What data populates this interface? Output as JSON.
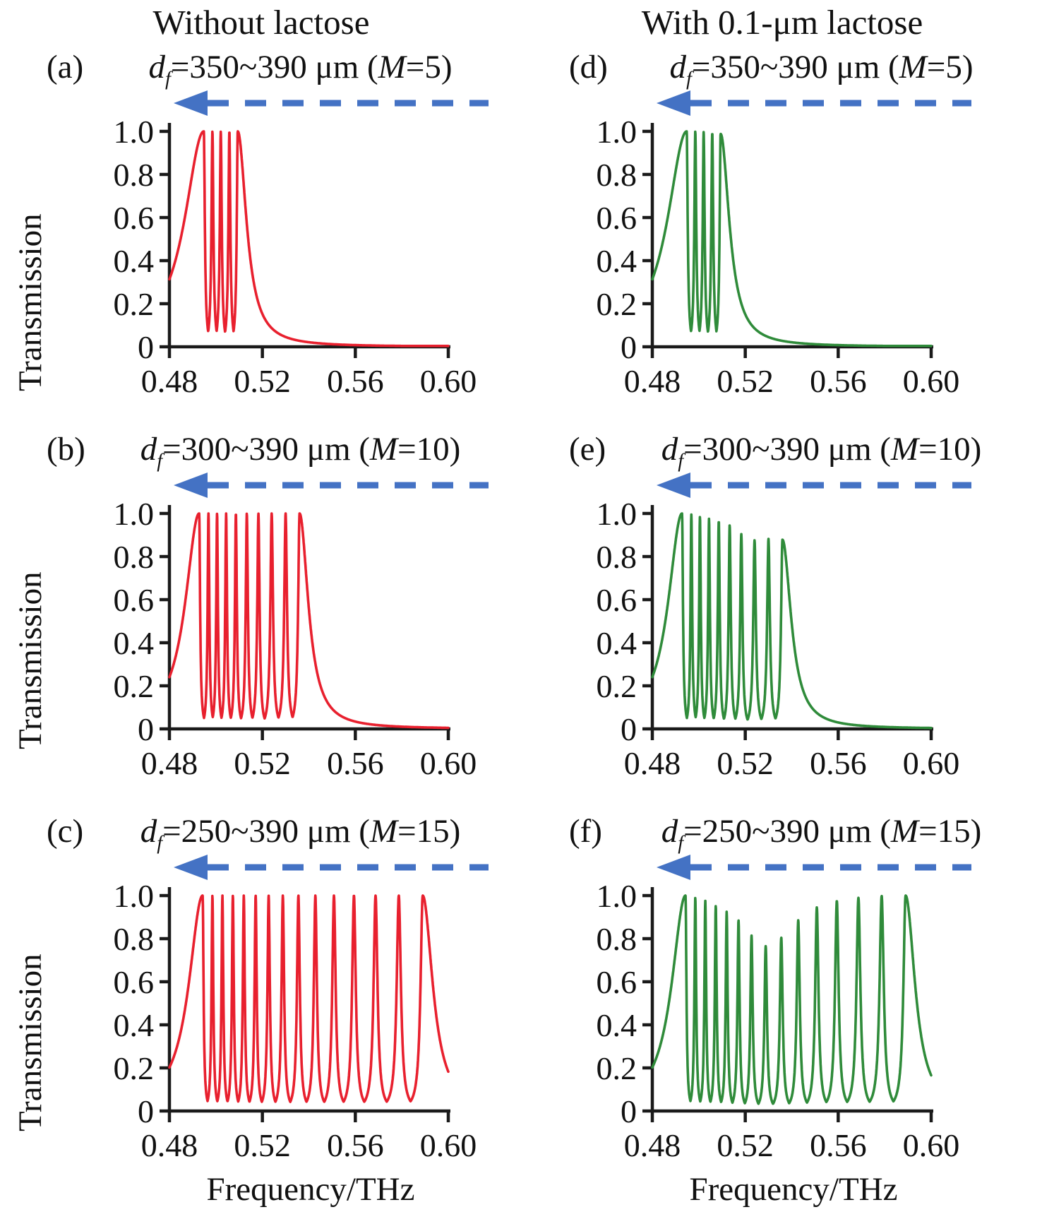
{
  "figure": {
    "columns": [
      {
        "header": "Without lactose"
      },
      {
        "header": "With 0.1-μm lactose"
      }
    ]
  },
  "axes": {
    "y_label": "Transmission",
    "x_label": "Frequency/THz",
    "yticks": [
      "1.0",
      "0.8",
      "0.6",
      "0.4",
      "0.2",
      "0"
    ],
    "xticks": [
      "0.48",
      "0.52",
      "0.56",
      "0.60"
    ],
    "x_range": [
      0.48,
      0.6
    ],
    "y_range": [
      0,
      1.0
    ],
    "arrow": {
      "style": "dashed",
      "direction": "left",
      "color": "#4472c4"
    }
  },
  "chart_data": [
    {
      "id": "a",
      "type": "line",
      "color": "#e8202e",
      "label": "(a)",
      "title_text": "df=350~390 um (M=5)",
      "t_d": "d",
      "t_sub": "f",
      "t_mid": "=350~390 μm (",
      "t_m": "M",
      "t_end": "=5)",
      "xlabel": "Frequency/THz",
      "ylabel": "Transmission",
      "start_value": 0.32,
      "end_value": 0.004,
      "peaks": {
        "f": [
          0.4948,
          0.4985,
          0.5021,
          0.5058,
          0.5094
        ],
        "h": [
          1,
          1,
          1,
          1,
          1
        ]
      },
      "model": {
        "peak_width_frac": 0.14,
        "left_tail_width": 0.01,
        "right_tail_width": 0.0045
      }
    },
    {
      "id": "b",
      "type": "line",
      "color": "#e8202e",
      "label": "(b)",
      "title_text": "df=300~390 um (M=10)",
      "t_d": "d",
      "t_sub": "f",
      "t_mid": "=300~390 μm (",
      "t_m": "M",
      "t_end": "=10)",
      "xlabel": "Frequency/THz",
      "ylabel": "Transmission",
      "start_value": 0.24,
      "end_value": 0.005,
      "peaks": {
        "f": [
          0.4928,
          0.4968,
          0.5005,
          0.5044,
          0.5086,
          0.5133,
          0.5183,
          0.524,
          0.53,
          0.536
        ],
        "h": [
          1,
          1,
          1,
          1,
          1,
          1,
          1,
          1,
          1,
          1
        ]
      },
      "model": {
        "peak_width_frac": 0.12,
        "left_tail_width": 0.0072,
        "right_tail_width": 0.0045
      }
    },
    {
      "id": "c",
      "type": "line",
      "color": "#e8202e",
      "label": "(c)",
      "title_text": "df=250~390 um (M=15)",
      "t_d": "d",
      "t_sub": "f",
      "t_mid": "=250~390 μm (",
      "t_m": "M",
      "t_end": "=15)",
      "xlabel": "Frequency/THz",
      "ylabel": "Transmission",
      "start_value": 0.2,
      "end_value": 0.165,
      "peaks": {
        "f": [
          0.4943,
          0.4985,
          0.5028,
          0.5073,
          0.512,
          0.5171,
          0.5227,
          0.5288,
          0.5355,
          0.5428,
          0.5508,
          0.5594,
          0.5687,
          0.5787,
          0.589
        ],
        "h": [
          1,
          1,
          1,
          1,
          1,
          1,
          1,
          1,
          1,
          1,
          1,
          1,
          1,
          1,
          1
        ]
      },
      "model": {
        "peak_width_frac": 0.11,
        "left_tail_width": 0.0072,
        "right_tail_width": 0.0052
      }
    },
    {
      "id": "d",
      "type": "line",
      "color": "#2f8b3a",
      "label": "(d)",
      "title_text": "df=350~390 um (M=5)",
      "t_d": "d",
      "t_sub": "f",
      "t_mid": "=350~390 μm (",
      "t_m": "M",
      "t_end": "=5)",
      "xlabel": "Frequency/THz",
      "ylabel": "Transmission",
      "start_value": 0.32,
      "end_value": 0.004,
      "peaks": {
        "f": [
          0.4948,
          0.4985,
          0.5021,
          0.5058,
          0.5094
        ],
        "h": [
          1,
          1,
          0.998,
          0.993,
          0.988
        ]
      },
      "model": {
        "peak_width_frac": 0.14,
        "left_tail_width": 0.01,
        "right_tail_width": 0.0045
      }
    },
    {
      "id": "e",
      "type": "line",
      "color": "#2f8b3a",
      "label": "(e)",
      "title_text": "df=300~390 um (M=10)",
      "t_d": "d",
      "t_sub": "f",
      "t_mid": "=300~390 μm (",
      "t_m": "M",
      "t_end": "=10)",
      "xlabel": "Frequency/THz",
      "ylabel": "Transmission",
      "start_value": 0.24,
      "end_value": 0.005,
      "peaks": {
        "f": [
          0.4928,
          0.4968,
          0.5005,
          0.5044,
          0.5086,
          0.5133,
          0.5183,
          0.524,
          0.53,
          0.536
        ],
        "h": [
          1,
          0.995,
          0.985,
          0.975,
          0.965,
          0.945,
          0.905,
          0.875,
          0.882,
          0.878
        ]
      },
      "model": {
        "peak_width_frac": 0.12,
        "left_tail_width": 0.0072,
        "right_tail_width": 0.0045
      }
    },
    {
      "id": "f",
      "type": "line",
      "color": "#2f8b3a",
      "label": "(f)",
      "title_text": "df=250~390 um (M=15)",
      "t_d": "d",
      "t_sub": "f",
      "t_mid": "=250~390 μm (",
      "t_m": "M",
      "t_end": "=15)",
      "xlabel": "Frequency/THz",
      "ylabel": "Transmission",
      "start_value": 0.2,
      "end_value": 0.145,
      "peaks": {
        "f": [
          0.4943,
          0.4985,
          0.5028,
          0.5073,
          0.512,
          0.5171,
          0.5227,
          0.5288,
          0.5355,
          0.5428,
          0.5508,
          0.5594,
          0.5687,
          0.5787,
          0.589
        ],
        "h": [
          1,
          0.99,
          0.975,
          0.952,
          0.925,
          0.885,
          0.815,
          0.765,
          0.805,
          0.885,
          0.945,
          0.975,
          0.99,
          0.998,
          1
        ]
      },
      "model": {
        "peak_width_frac": 0.11,
        "left_tail_width": 0.0072,
        "right_tail_width": 0.0049
      }
    }
  ]
}
